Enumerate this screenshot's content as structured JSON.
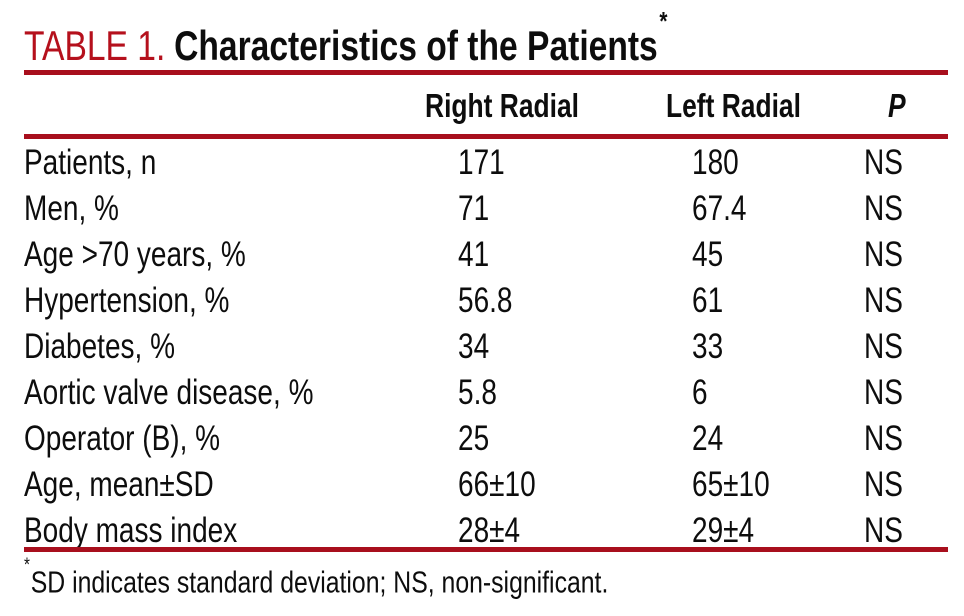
{
  "title": {
    "table_label": "TABLE 1.",
    "table_title": "Characteristics of the Patients",
    "asterisk_marker": "*"
  },
  "table": {
    "columns": {
      "rowhead": "",
      "right": "Right Radial",
      "left": "Left Radial",
      "p": "P"
    },
    "rows": [
      {
        "label": "Patients, n",
        "right": "171",
        "left": "180",
        "p": "NS"
      },
      {
        "label": "Men, %",
        "right": "71",
        "left": "67.4",
        "p": "NS"
      },
      {
        "label": "Age >70 years, %",
        "right": "41",
        "left": "45",
        "p": "NS"
      },
      {
        "label": "Hypertension, %",
        "right": "56.8",
        "left": "61",
        "p": "NS"
      },
      {
        "label": "Diabetes, %",
        "right": "34",
        "left": "33",
        "p": "NS"
      },
      {
        "label": "Aortic valve disease, %",
        "right": "5.8",
        "left": "6",
        "p": "NS"
      },
      {
        "label": "Operator (B), %",
        "right": "25",
        "left": "24",
        "p": "NS"
      },
      {
        "label": "Age, mean±SD",
        "right": "66±10",
        "left": "65±10",
        "p": "NS"
      },
      {
        "label": "Body mass index",
        "right": "28±4",
        "left": "29±4",
        "p": "NS"
      }
    ]
  },
  "footnote": {
    "marker": "*",
    "text": "SD indicates standard deviation; NS, non-significant."
  },
  "colors": {
    "rule_red": "#a80f1d",
    "title_red": "#b5101c",
    "text_black": "#0d0d0d"
  }
}
